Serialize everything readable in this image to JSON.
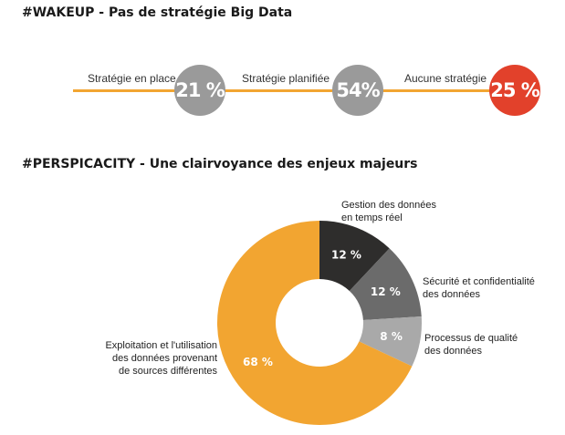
{
  "section1": {
    "title": "#WAKEUP  - Pas de stratégie Big Data",
    "stats": [
      {
        "label": "Stratégie en place",
        "value": "21 %",
        "color": "#9a9a9a"
      },
      {
        "label": "Stratégie planifiée",
        "value": "54%",
        "color": "#9a9a9a"
      },
      {
        "label": "Aucune stratégie",
        "value": "25 %",
        "color": "#e2412b"
      }
    ],
    "line_color": "#f2a531"
  },
  "section2": {
    "title": "#PERSPICACITY - Une clairvoyance des enjeux majeurs"
  },
  "chart_data": {
    "type": "pie",
    "donut": true,
    "slices": [
      {
        "label_lines": [
          "Gestion des données",
          "en temps réel"
        ],
        "value": 12,
        "value_label": "12 %",
        "color": "#2e2d2c"
      },
      {
        "label_lines": [
          "Sécurité et confidentialité",
          "des données"
        ],
        "value": 12,
        "value_label": "12 %",
        "color": "#6b6b6b"
      },
      {
        "label_lines": [
          "Processus de qualité",
          "des données"
        ],
        "value": 8,
        "value_label": "8 %",
        "color": "#a9a9a9"
      },
      {
        "label_lines": [
          "Exploitation et l'utilisation",
          "des données provenant",
          "de sources différentes"
        ],
        "value": 68,
        "value_label": "68 %",
        "color": "#f2a531"
      }
    ]
  }
}
